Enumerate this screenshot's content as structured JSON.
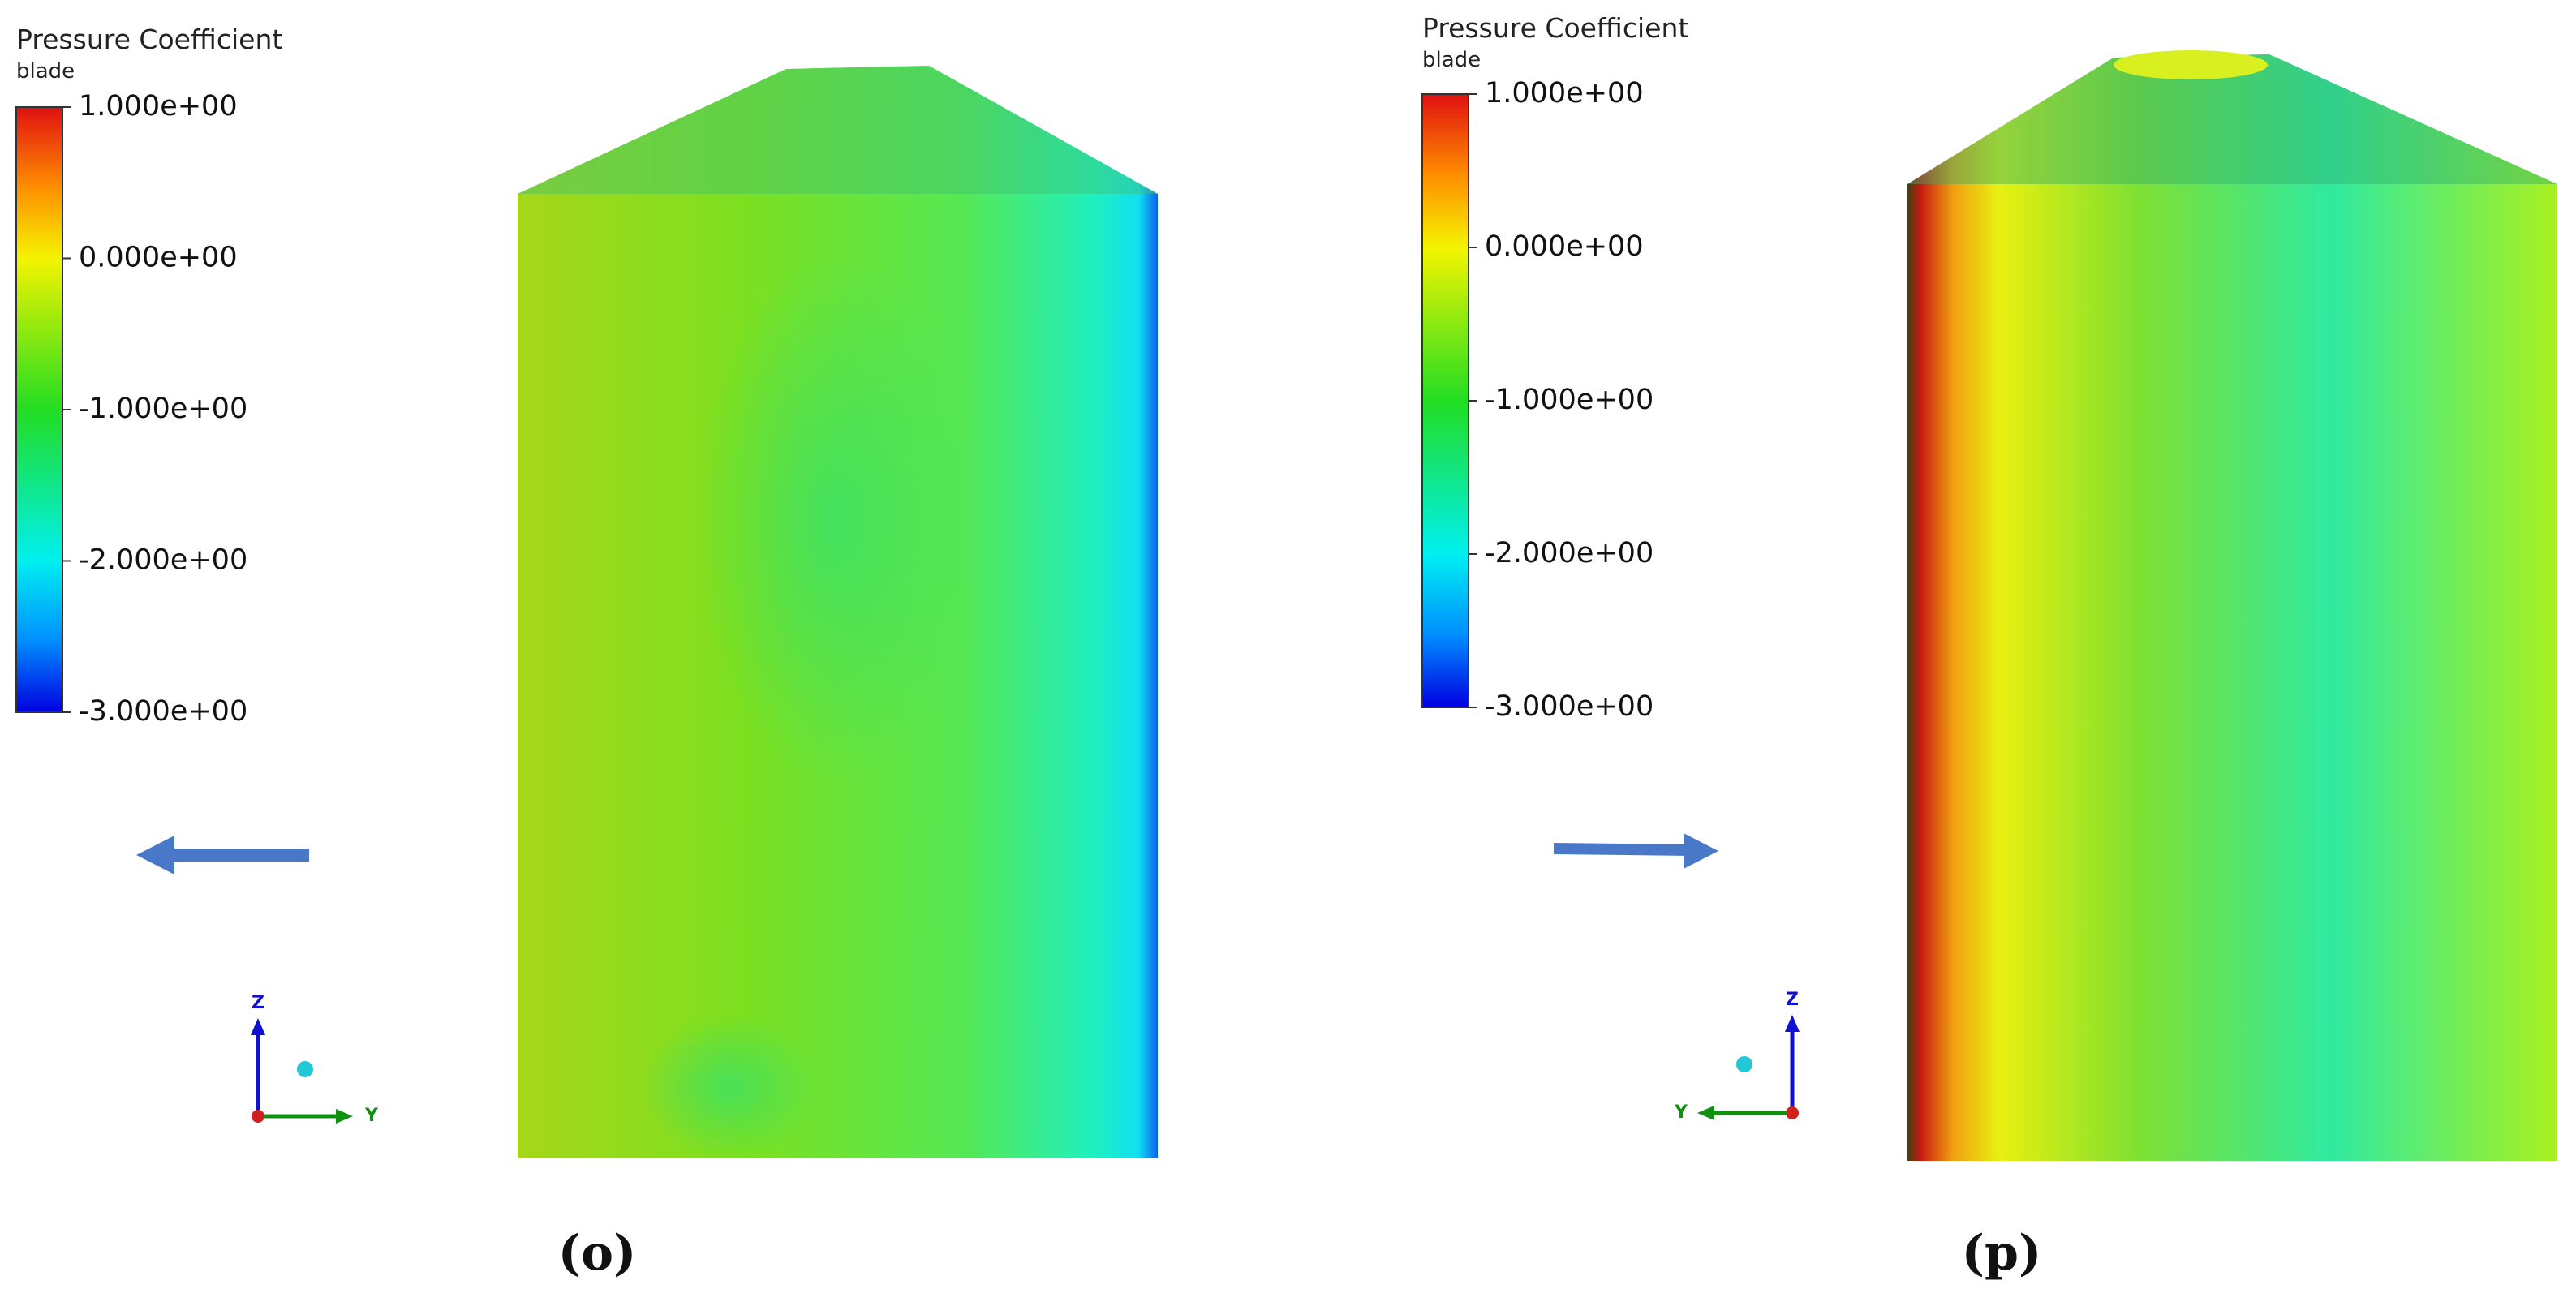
{
  "panels": [
    {
      "legend": {
        "title": "Pressure Coefficient",
        "subtitle": "blade",
        "range": [
          -3,
          1
        ],
        "ticks": [
          {
            "value": 1,
            "label": "1.000e+00"
          },
          {
            "value": 0,
            "label": "0.000e+00"
          },
          {
            "value": -1,
            "label": "-1.000e+00"
          },
          {
            "value": -2,
            "label": "-2.000e+00"
          },
          {
            "value": -3,
            "label": "-3.000e+00"
          }
        ]
      },
      "axes": {
        "z": "Z",
        "y": "Y"
      },
      "caption": "(o)"
    },
    {
      "legend": {
        "title": "Pressure Coefficient",
        "subtitle": "blade",
        "range": [
          -3,
          1
        ],
        "ticks": [
          {
            "value": 1,
            "label": "1.000e+00"
          },
          {
            "value": 0,
            "label": "0.000e+00"
          },
          {
            "value": -1,
            "label": "-1.000e+00"
          },
          {
            "value": -2,
            "label": "-2.000e+00"
          },
          {
            "value": -3,
            "label": "-3.000e+00"
          }
        ]
      },
      "axes": {
        "z": "Z",
        "y": "Y"
      },
      "caption": "(p)"
    }
  ]
}
